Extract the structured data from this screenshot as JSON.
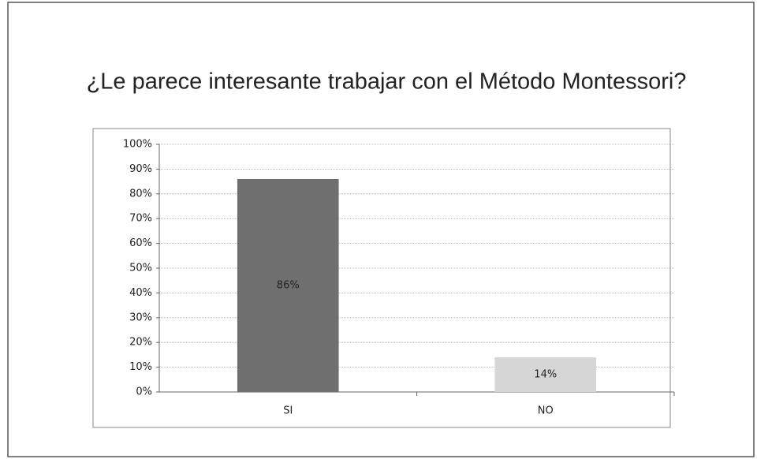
{
  "chart_data": {
    "type": "bar",
    "title": "¿Le parece interesante trabajar con el Método Montessori?",
    "categories": [
      "SI",
      "NO"
    ],
    "values": [
      86,
      14
    ],
    "value_labels": [
      "86%",
      "14%"
    ],
    "colors": [
      "#6f6f6f",
      "#d6d6d6"
    ],
    "ylim": [
      0,
      100
    ],
    "yticks": [
      {
        "value": 0,
        "label": "0%"
      },
      {
        "value": 10,
        "label": "10%"
      },
      {
        "value": 20,
        "label": "20%"
      },
      {
        "value": 30,
        "label": "30%"
      },
      {
        "value": 40,
        "label": "40%"
      },
      {
        "value": 50,
        "label": "50%"
      },
      {
        "value": 60,
        "label": "60%"
      },
      {
        "value": 70,
        "label": "70%"
      },
      {
        "value": 80,
        "label": "80%"
      },
      {
        "value": 90,
        "label": "90%"
      },
      {
        "value": 100,
        "label": "100%"
      }
    ],
    "grid": true
  }
}
